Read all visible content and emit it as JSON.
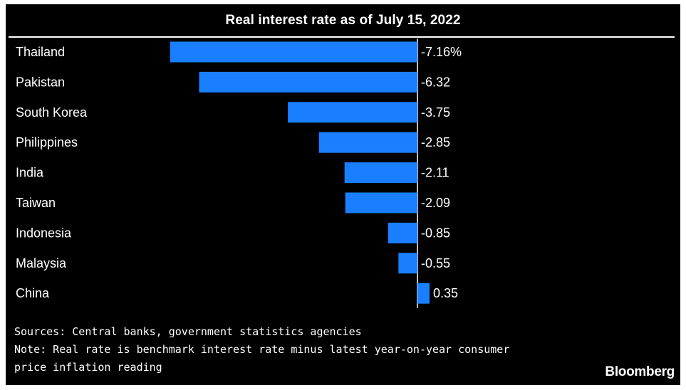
{
  "colors": {
    "background": "#000000",
    "bar": "#1a7ffe",
    "text": "#ffffff"
  },
  "chart_data": {
    "type": "bar",
    "orientation": "horizontal",
    "title": "Real interest rate as of July 15, 2022",
    "categories": [
      "Thailand",
      "Pakistan",
      "South Korea",
      "Philippines",
      "India",
      "Taiwan",
      "Indonesia",
      "Malaysia",
      "China"
    ],
    "values": [
      -7.16,
      -6.32,
      -3.75,
      -2.85,
      -2.11,
      -2.09,
      -0.85,
      -0.55,
      0.35
    ],
    "value_labels": [
      "-7.16%",
      "-6.32",
      "-3.75",
      "-2.85",
      "-2.11",
      "-2.09",
      "-0.85",
      "-0.55",
      "0.35"
    ],
    "xlim": [
      -7.16,
      0.35
    ],
    "grid": false,
    "legend": "none"
  },
  "footer": {
    "sources": "Sources: Central banks, government statistics agencies",
    "note_line1": "Note: Real rate is benchmark interest rate minus latest year-on-year consumer",
    "note_line2": "price inflation reading",
    "logo": "Bloomberg"
  }
}
